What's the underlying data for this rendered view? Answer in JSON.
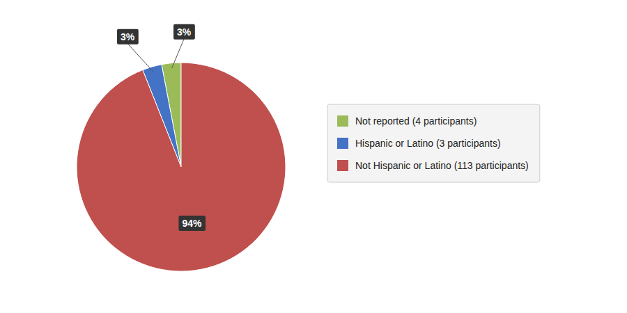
{
  "chart_data": {
    "type": "pie",
    "categories": [
      "Not reported (4 participants)",
      "Hispanic or Latino (3 participants)",
      "Not Hispanic or Latino (113 participants)"
    ],
    "values": [
      3,
      3,
      94
    ],
    "value_labels": [
      "3%",
      "3%",
      "94%"
    ],
    "colors": [
      "#9BBB59",
      "#4472C4",
      "#C0504D"
    ],
    "data_labels": true,
    "legend": "right"
  }
}
